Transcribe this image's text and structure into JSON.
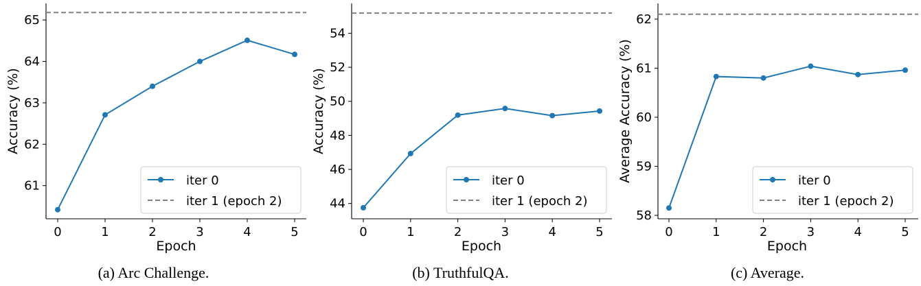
{
  "chart_data": [
    {
      "type": "line",
      "caption": "(a)  Arc Challenge.",
      "xlabel": "Epoch",
      "ylabel": "Accuracy (%)",
      "x": [
        0,
        1,
        2,
        3,
        4,
        5
      ],
      "xticks": [
        "0",
        "1",
        "2",
        "3",
        "4",
        "5"
      ],
      "yticks": [
        "61",
        "62",
        "63",
        "64",
        "65"
      ],
      "ylim": [
        60.2,
        65.4
      ],
      "series": [
        {
          "name": "iter 0",
          "values": [
            60.42,
            62.71,
            63.4,
            64.0,
            64.51,
            64.17
          ],
          "color": "#1f77b4",
          "style": "solid-with-markers"
        }
      ],
      "reference_lines": [
        {
          "name": "iter 1 (epoch 2)",
          "value": 65.18,
          "color": "#808080",
          "style": "dashed"
        }
      ],
      "legend": "lower-right",
      "grid": false
    },
    {
      "type": "line",
      "caption": "(b)  TruthfulQA.",
      "xlabel": "Epoch",
      "ylabel": "Accuracy (%)",
      "x": [
        0,
        1,
        2,
        3,
        4,
        5
      ],
      "xticks": [
        "0",
        "1",
        "2",
        "3",
        "4",
        "5"
      ],
      "yticks": [
        "44",
        "46",
        "48",
        "50",
        "52",
        "54"
      ],
      "ylim": [
        43.1,
        55.75
      ],
      "series": [
        {
          "name": "iter 0",
          "values": [
            43.75,
            46.93,
            49.19,
            49.58,
            49.16,
            49.43
          ],
          "color": "#1f77b4",
          "style": "solid-with-markers"
        }
      ],
      "reference_lines": [
        {
          "name": "iter 1 (epoch 2)",
          "value": 55.18,
          "color": "#808080",
          "style": "dashed"
        }
      ],
      "legend": "lower-right",
      "grid": false
    },
    {
      "type": "line",
      "caption": "(c)  Average.",
      "xlabel": "Epoch",
      "ylabel": "Average Accuracy (%)",
      "x": [
        0,
        1,
        2,
        3,
        4,
        5
      ],
      "xticks": [
        "0",
        "1",
        "2",
        "3",
        "4",
        "5"
      ],
      "yticks": [
        "58",
        "59",
        "60",
        "61",
        "62"
      ],
      "ylim": [
        57.93,
        62.32
      ],
      "series": [
        {
          "name": "iter 0",
          "values": [
            58.15,
            60.83,
            60.8,
            61.04,
            60.87,
            60.96
          ],
          "color": "#1f77b4",
          "style": "solid-with-markers"
        }
      ],
      "reference_lines": [
        {
          "name": "iter 1 (epoch 2)",
          "value": 62.1,
          "color": "#808080",
          "style": "dashed"
        }
      ],
      "legend": "lower-right",
      "grid": false
    }
  ]
}
